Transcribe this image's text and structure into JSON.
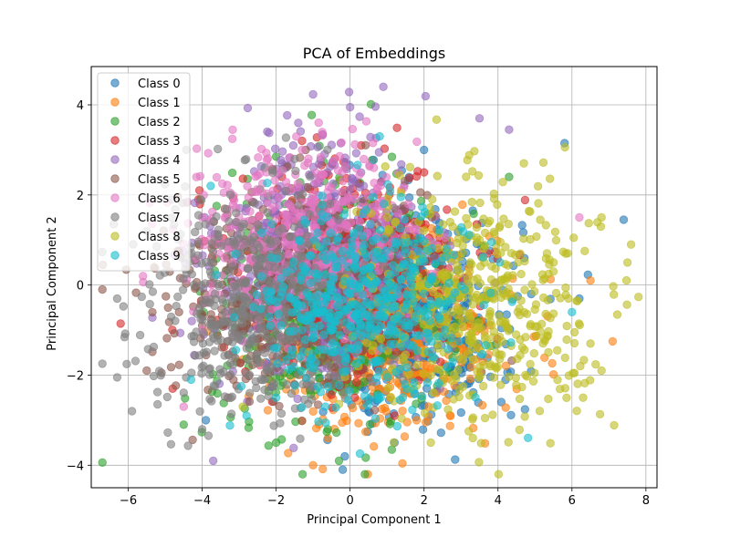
{
  "chart_data": {
    "type": "scatter",
    "title": "PCA of Embeddings",
    "xlabel": "Principal Component 1",
    "ylabel": "Principal Component 2",
    "xlim": [
      -7.0,
      8.3
    ],
    "ylim": [
      -4.5,
      4.85
    ],
    "xticks": [
      -6,
      -4,
      -2,
      0,
      2,
      4,
      6,
      8
    ],
    "yticks": [
      -4,
      -2,
      0,
      2,
      4
    ],
    "grid": true,
    "legend_position": "top-left",
    "point_alpha": 0.6,
    "series": [
      {
        "name": "Class 0",
        "color": "#1f77b4",
        "center": [
          1.6,
          -0.7
        ],
        "spread": [
          1.5,
          1.2
        ],
        "points_shown_approx": 500,
        "extremes": [
          [
            -0.2,
            -4.1
          ],
          [
            5.8,
            3.15
          ],
          [
            7.4,
            1.45
          ],
          [
            2.0,
            3.0
          ],
          [
            -3.9,
            -3.0
          ],
          [
            1.2,
            -3.5
          ],
          [
            4.9,
            -0.2
          ],
          [
            6.2,
            -0.3
          ]
        ]
      },
      {
        "name": "Class 1",
        "color": "#ff7f0e",
        "center": [
          0.8,
          -1.0
        ],
        "spread": [
          1.6,
          1.1
        ],
        "points_shown_approx": 500,
        "extremes": [
          [
            -1.0,
            -4.0
          ],
          [
            7.1,
            -1.25
          ],
          [
            6.5,
            0.1
          ],
          [
            -0.6,
            -3.4
          ],
          [
            1.8,
            -3.0
          ]
        ]
      },
      {
        "name": "Class 2",
        "color": "#2ca02c",
        "center": [
          -0.5,
          -0.3
        ],
        "spread": [
          1.6,
          1.3
        ],
        "points_shown_approx": 500,
        "extremes": [
          [
            -0.3,
            -3.9
          ],
          [
            -2.0,
            2.85
          ],
          [
            4.3,
            2.4
          ],
          [
            -4.5,
            -3.1
          ],
          [
            -2.0,
            -3.5
          ],
          [
            -0.6,
            -3.2
          ]
        ]
      },
      {
        "name": "Class 3",
        "color": "#d62728",
        "center": [
          0.0,
          0.2
        ],
        "spread": [
          1.5,
          1.2
        ],
        "points_shown_approx": 500,
        "extremes": [
          [
            -1.3,
            3.2
          ],
          [
            0.3,
            3.1
          ],
          [
            -4.8,
            -2.3
          ],
          [
            2.0,
            2.5
          ],
          [
            -4.1,
            1.9
          ]
        ]
      },
      {
        "name": "Class 4",
        "color": "#9467bd",
        "center": [
          -0.8,
          0.6
        ],
        "spread": [
          1.5,
          1.3
        ],
        "points_shown_approx": 500,
        "extremes": [
          [
            0.9,
            4.4
          ],
          [
            0.0,
            3.95
          ],
          [
            3.5,
            3.7
          ],
          [
            -3.7,
            -3.9
          ],
          [
            -1.4,
            3.6
          ],
          [
            4.3,
            3.45
          ]
        ]
      },
      {
        "name": "Class 5",
        "color": "#8c564b",
        "center": [
          -1.6,
          -0.2
        ],
        "spread": [
          1.6,
          1.1
        ],
        "points_shown_approx": 500,
        "extremes": [
          [
            -5.5,
            -1.9
          ],
          [
            -5.3,
            0.4
          ],
          [
            -1.2,
            3.0
          ],
          [
            -3.3,
            -2.5
          ]
        ]
      },
      {
        "name": "Class 6",
        "color": "#e377c2",
        "center": [
          -1.2,
          1.0
        ],
        "spread": [
          1.5,
          1.0
        ],
        "points_shown_approx": 500,
        "extremes": [
          [
            -5.6,
            0.2
          ],
          [
            -4.0,
            1.5
          ],
          [
            6.2,
            1.5
          ],
          [
            -4.5,
            -2.7
          ],
          [
            -1.3,
            3.0
          ]
        ]
      },
      {
        "name": "Class 7",
        "color": "#7f7f7f",
        "center": [
          -2.4,
          -0.3
        ],
        "spread": [
          1.6,
          1.2
        ],
        "points_shown_approx": 500,
        "extremes": [
          [
            -6.3,
            -2.05
          ],
          [
            -6.3,
            -0.3
          ],
          [
            -5.9,
            -2.8
          ],
          [
            -4.0,
            -3.2
          ],
          [
            -5.5,
            1.2
          ],
          [
            -1.5,
            2.8
          ]
        ]
      },
      {
        "name": "Class 8",
        "color": "#bcbd22",
        "center": [
          3.4,
          -0.4
        ],
        "spread": [
          1.6,
          1.3
        ],
        "points_shown_approx": 500,
        "extremes": [
          [
            7.6,
            0.9
          ],
          [
            7.5,
            0.5
          ],
          [
            6.3,
            -2.5
          ],
          [
            6.8,
            -1.9
          ],
          [
            4.7,
            2.7
          ],
          [
            6.8,
            1.5
          ],
          [
            -2.9,
            -2.7
          ]
        ]
      },
      {
        "name": "Class 9",
        "color": "#17becf",
        "center": [
          0.4,
          -0.5
        ],
        "spread": [
          1.4,
          1.1
        ],
        "points_shown_approx": 500,
        "extremes": [
          [
            -2.8,
            -2.9
          ],
          [
            0.8,
            3.3
          ],
          [
            -4.3,
            -2.1
          ],
          [
            6.0,
            -0.6
          ],
          [
            -2.0,
            -2.5
          ]
        ]
      }
    ]
  }
}
